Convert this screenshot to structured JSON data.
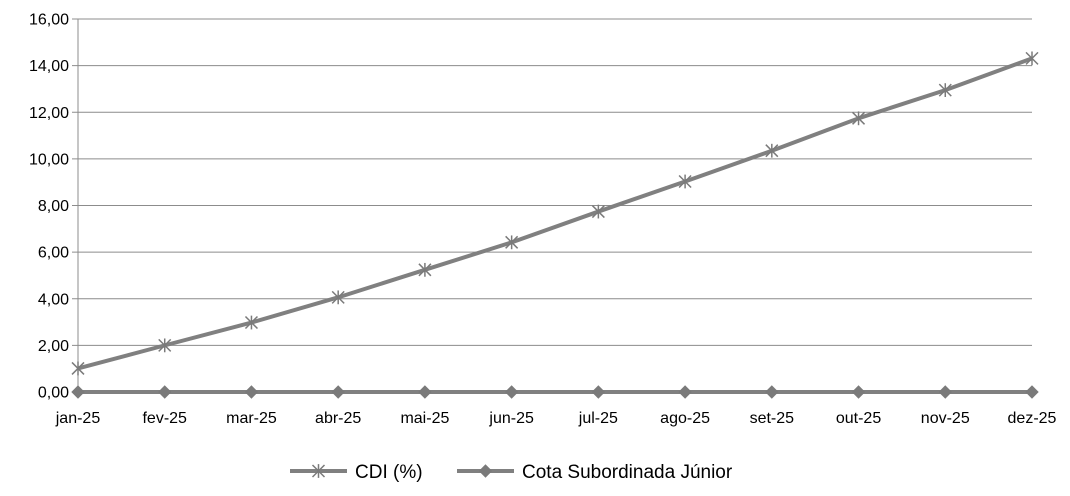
{
  "chart_data": {
    "type": "line",
    "categories": [
      "jan-25",
      "fev-25",
      "mar-25",
      "abr-25",
      "mai-25",
      "jun-25",
      "jul-25",
      "ago-25",
      "set-25",
      "out-25",
      "nov-25",
      "dez-25"
    ],
    "ylim": [
      0,
      16
    ],
    "yticks": [
      "0,00",
      "2,00",
      "4,00",
      "6,00",
      "8,00",
      "10,00",
      "12,00",
      "14,00",
      "16,00"
    ],
    "grid": true,
    "legend_position": "bottom",
    "series": [
      {
        "name": "CDI (%)",
        "marker": "asterisk",
        "color": "#808080",
        "values": [
          1.01,
          2.0,
          2.98,
          4.06,
          5.24,
          6.42,
          7.74,
          9.03,
          10.35,
          11.74,
          12.95,
          14.31
        ]
      },
      {
        "name": "Cota Subordinada Júnior",
        "marker": "diamond",
        "color": "#808080",
        "values": [
          0,
          0,
          0,
          0,
          0,
          0,
          0,
          0,
          0,
          0,
          0,
          0
        ]
      }
    ]
  }
}
